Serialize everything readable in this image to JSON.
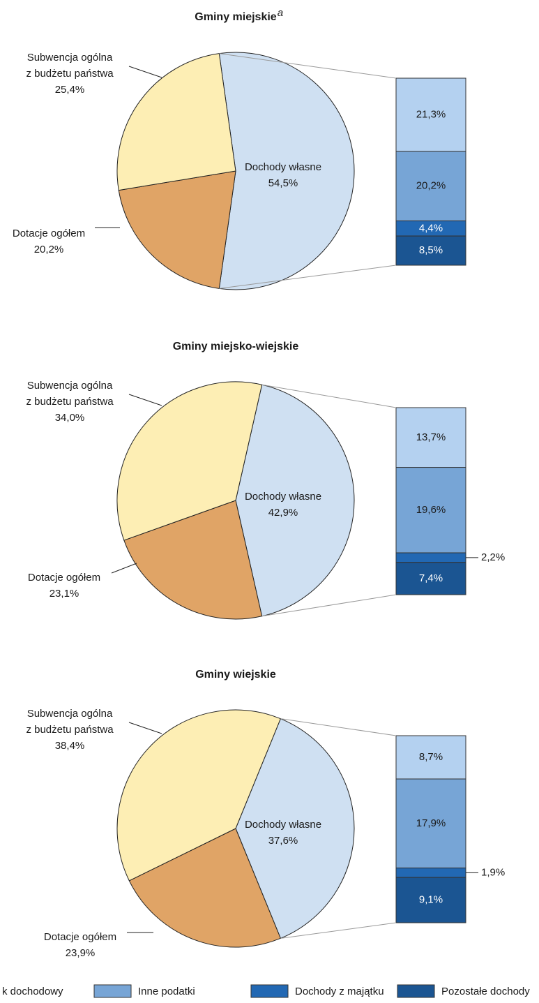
{
  "chart_data": [
    {
      "type": "pie",
      "title": "Gminy miejskie",
      "title_sup": "a",
      "categories": [
        "Dochody własne",
        "Dotacje ogółem",
        "Subwencja ogólna\nz budżetu państwa"
      ],
      "values": [
        54.5,
        20.2,
        25.4
      ],
      "value_labels": [
        "54,5%",
        "20,2%",
        "25,4%"
      ],
      "colors": [
        "#cfe0f2",
        "#e0a466",
        "#fdeeb4"
      ],
      "bar_values": [
        21.3,
        20.2,
        4.4,
        8.5
      ],
      "bar_value_labels": [
        "21,3%",
        "20,2%",
        "4,4%",
        "8,5%"
      ]
    },
    {
      "type": "pie",
      "title": "Gminy miejsko-wiejskie",
      "categories": [
        "Dochody własne",
        "Dotacje ogółem",
        "Subwencja ogólna\nz budżetu państwa"
      ],
      "values": [
        42.9,
        23.1,
        34.0
      ],
      "value_labels": [
        "42,9%",
        "23,1%",
        "34,0%"
      ],
      "colors": [
        "#cfe0f2",
        "#e0a466",
        "#fdeeb4"
      ],
      "bar_values": [
        13.7,
        19.6,
        2.2,
        7.4
      ],
      "bar_value_labels": [
        "13,7%",
        "19,6%",
        "2,2%",
        "7,4%"
      ]
    },
    {
      "type": "pie",
      "title": "Gminy wiejskie",
      "categories": [
        "Dochody własne",
        "Dotacje ogółem",
        "Subwencja ogólna\nz budżetu państwa"
      ],
      "values": [
        37.6,
        23.9,
        38.4
      ],
      "value_labels": [
        "37,6%",
        "23,9%",
        "38,4%"
      ],
      "colors": [
        "#cfe0f2",
        "#e0a466",
        "#fdeeb4"
      ],
      "bar_values": [
        8.7,
        17.9,
        1.9,
        9.1
      ],
      "bar_value_labels": [
        "8,7%",
        "17,9%",
        "1,9%",
        "9,1%"
      ]
    }
  ],
  "legend": {
    "labels": [
      "k dochodowy",
      "Inne podatki",
      "Dochody z majątku",
      "Pozostałe dochody"
    ],
    "colors": [
      "#b4d1f0",
      "#77a5d6",
      "#2268b3",
      "#1b5592"
    ]
  }
}
